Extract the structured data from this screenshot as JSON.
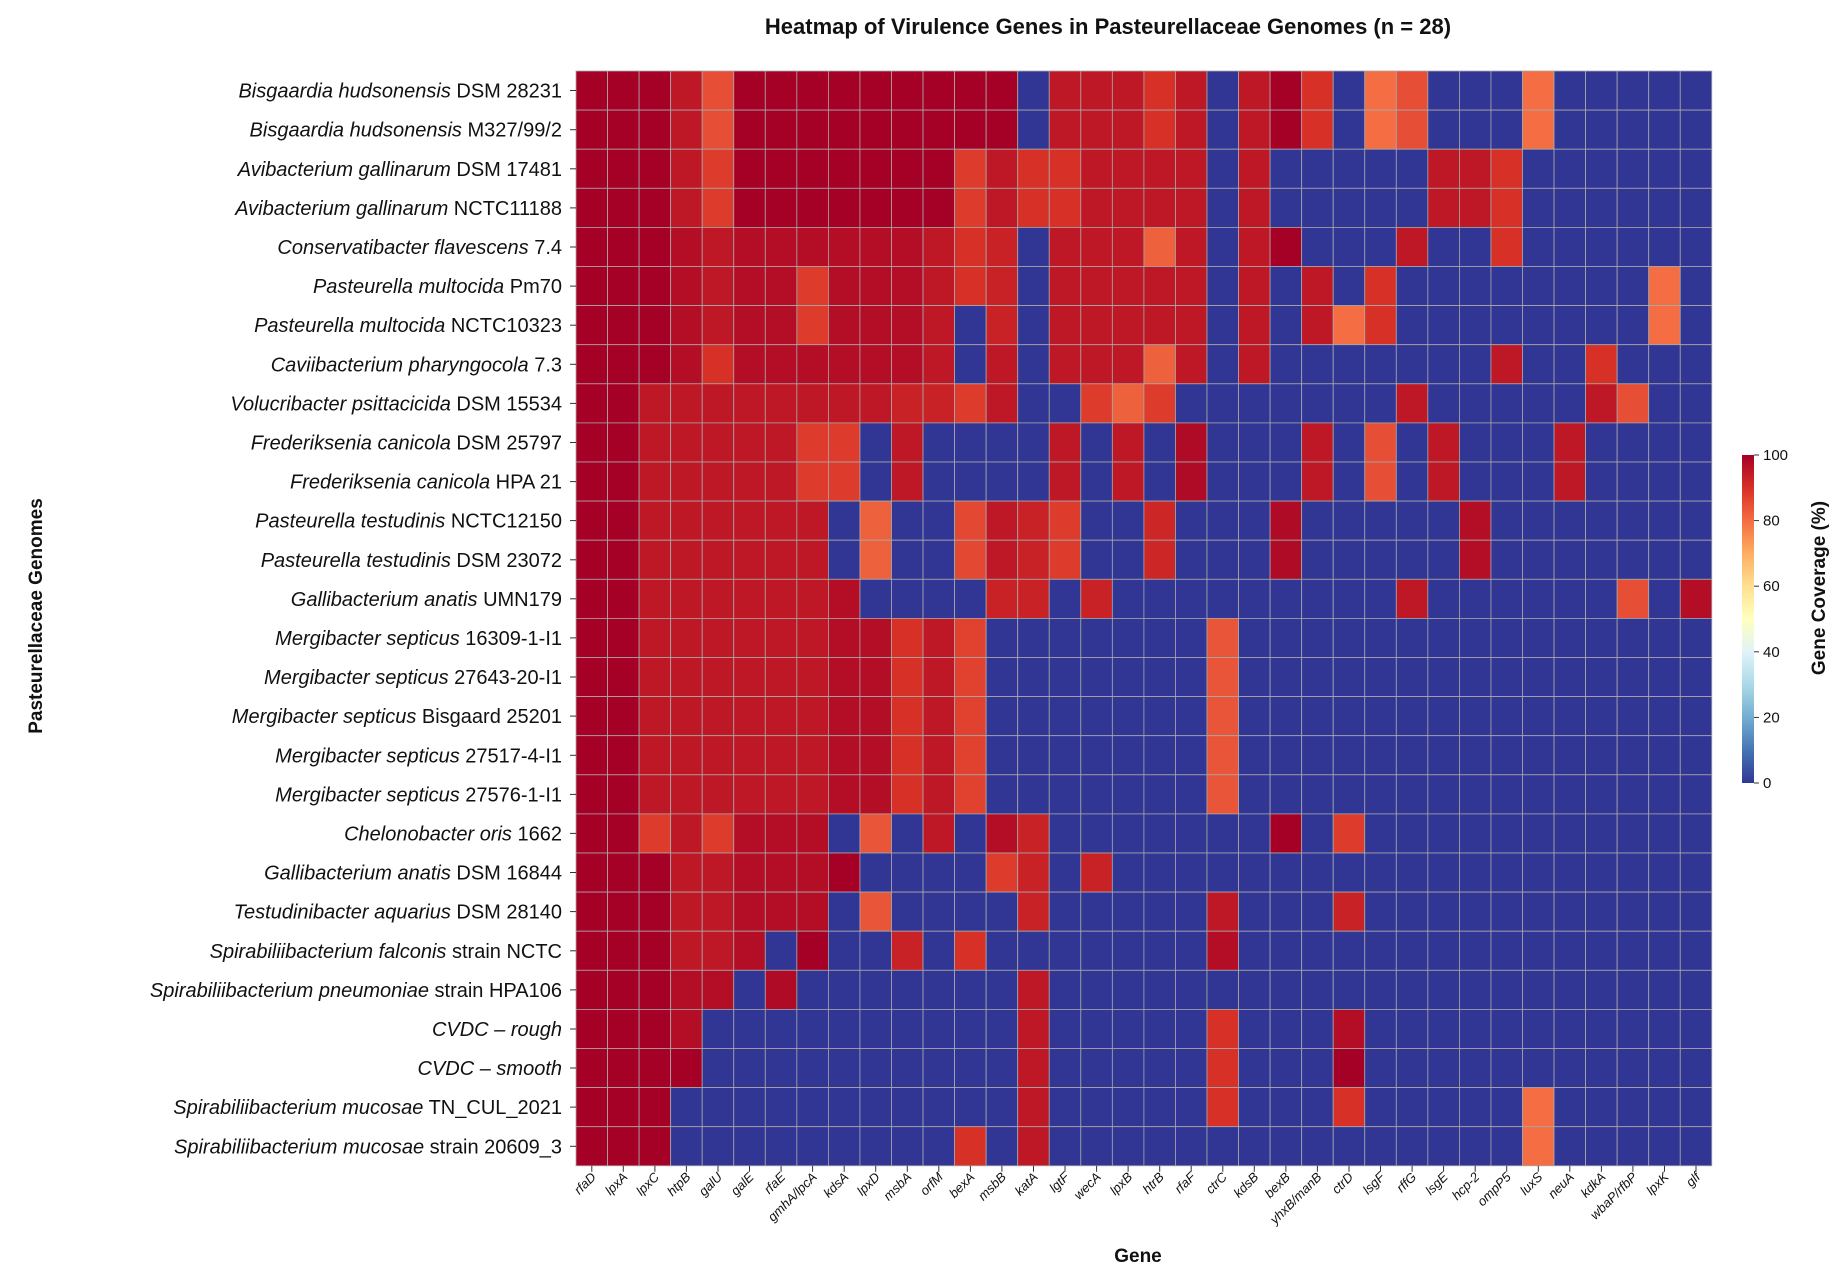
{
  "chart_data": {
    "type": "heatmap",
    "title": "Heatmap of Virulence Genes in Pasteurellaceae Genomes (n = 28)",
    "xlabel": "Gene",
    "ylabel": "Pasteurellaceae Genomes",
    "colorbar": {
      "label": "Gene Coverage (%)",
      "range": [
        0,
        100
      ],
      "ticks": [
        "0",
        "20",
        "40",
        "60",
        "80",
        "100"
      ]
    },
    "colors": {
      "low": "#313695",
      "mid": "#FFFFBF",
      "high": "#A50026",
      "grid": "#A9A9A9"
    },
    "genes": [
      "rfaD",
      "lpxA",
      "lpxC",
      "htpB",
      "galU",
      "galE",
      "rfaE",
      "gmhA/lpcA",
      "kdsA",
      "lpxD",
      "msbA",
      "orfM",
      "bexA",
      "msbB",
      "katA",
      "lgtF",
      "wecA",
      "lpxB",
      "htrB",
      "rfaF",
      "ctrC",
      "kdsB",
      "bexB",
      "yhxB/manB",
      "ctrD",
      "lsgF",
      "rffG",
      "lsgE",
      "hcp-2",
      "ompP5",
      "luxS",
      "neuA",
      "kdkA",
      "wbaP/rfbP",
      "lpxK",
      "glf"
    ],
    "genomes": [
      {
        "species": "Bisgaardia hudsonensis",
        "strain": "DSM 28231"
      },
      {
        "species": "Bisgaardia hudsonensis",
        "strain": "M327/99/2"
      },
      {
        "species": "Avibacterium gallinarum",
        "strain": "DSM 17481"
      },
      {
        "species": "Avibacterium gallinarum",
        "strain": "NCTC11188"
      },
      {
        "species": "Conservatibacter flavescens",
        "strain": "7.4"
      },
      {
        "species": "Pasteurella multocida",
        "strain": "Pm70"
      },
      {
        "species": "Pasteurella multocida",
        "strain": "NCTC10323"
      },
      {
        "species": "Caviibacterium pharyngocola",
        "strain": "7.3"
      },
      {
        "species": "Volucribacter psittacicida",
        "strain": "DSM 15534"
      },
      {
        "species": "Frederiksenia canicola",
        "strain": "DSM 25797"
      },
      {
        "species": "Frederiksenia canicola",
        "strain": "HPA 21"
      },
      {
        "species": "Pasteurella testudinis",
        "strain": "NCTC12150"
      },
      {
        "species": "Pasteurella testudinis",
        "strain": "DSM 23072"
      },
      {
        "species": "Gallibacterium anatis",
        "strain": "UMN179"
      },
      {
        "species": "Mergibacter septicus",
        "strain": "16309-1-I1"
      },
      {
        "species": "Mergibacter septicus",
        "strain": "27643-20-I1"
      },
      {
        "species": "Mergibacter septicus",
        "strain": "Bisgaard 25201"
      },
      {
        "species": "Mergibacter septicus",
        "strain": "27517-4-I1"
      },
      {
        "species": "Mergibacter septicus",
        "strain": "27576-1-I1"
      },
      {
        "species": "Chelonobacter oris",
        "strain": "1662"
      },
      {
        "species": "Gallibacterium anatis",
        "strain": "DSM 16844"
      },
      {
        "species": "Testudinibacter aquarius",
        "strain": "DSM 28140"
      },
      {
        "species": "Spirabiliibacterium falconis",
        "strain": "strain NCTC"
      },
      {
        "species": "Spirabiliibacterium pneumoniae",
        "strain": "strain HPA106"
      },
      {
        "species": "CVDC – rough",
        "strain": ""
      },
      {
        "species": "CVDC – smooth",
        "strain": ""
      },
      {
        "species": "Spirabiliibacterium mucosae",
        "strain": "TN_CUL_2021"
      },
      {
        "species": "Spirabiliibacterium mucosae",
        "strain": "strain 20609_3"
      }
    ],
    "values": [
      [
        100,
        100,
        100,
        95,
        85,
        100,
        100,
        100,
        100,
        100,
        100,
        100,
        100,
        100,
        0,
        95,
        95,
        95,
        90,
        95,
        0,
        95,
        100,
        90,
        0,
        80,
        85,
        0,
        0,
        0,
        80,
        0,
        0,
        0,
        0,
        0
      ],
      [
        100,
        100,
        100,
        95,
        85,
        100,
        100,
        100,
        100,
        100,
        100,
        100,
        100,
        100,
        0,
        95,
        95,
        95,
        90,
        95,
        0,
        95,
        100,
        90,
        0,
        80,
        85,
        0,
        0,
        0,
        80,
        0,
        0,
        0,
        0,
        0
      ],
      [
        100,
        100,
        100,
        95,
        88,
        100,
        100,
        100,
        100,
        100,
        100,
        100,
        88,
        95,
        90,
        90,
        95,
        95,
        95,
        95,
        0,
        95,
        0,
        0,
        0,
        0,
        0,
        95,
        95,
        90,
        0,
        0,
        0,
        0,
        0,
        0
      ],
      [
        100,
        100,
        100,
        95,
        88,
        100,
        100,
        100,
        100,
        100,
        100,
        100,
        88,
        95,
        90,
        90,
        95,
        95,
        95,
        95,
        0,
        95,
        0,
        0,
        0,
        0,
        0,
        95,
        95,
        90,
        0,
        0,
        0,
        0,
        0,
        0
      ],
      [
        100,
        100,
        100,
        97,
        95,
        97,
        97,
        97,
        97,
        97,
        97,
        95,
        90,
        93,
        0,
        95,
        95,
        95,
        82,
        95,
        0,
        95,
        100,
        0,
        0,
        0,
        95,
        0,
        0,
        90,
        0,
        0,
        0,
        0,
        0,
        0
      ],
      [
        100,
        100,
        100,
        97,
        95,
        97,
        97,
        88,
        97,
        97,
        97,
        95,
        90,
        93,
        0,
        95,
        95,
        95,
        95,
        95,
        0,
        95,
        0,
        95,
        0,
        90,
        0,
        0,
        0,
        0,
        0,
        0,
        0,
        0,
        80,
        0
      ],
      [
        100,
        100,
        100,
        97,
        95,
        97,
        97,
        88,
        97,
        97,
        97,
        95,
        0,
        93,
        0,
        95,
        95,
        95,
        95,
        95,
        0,
        95,
        0,
        95,
        80,
        90,
        0,
        0,
        0,
        0,
        0,
        0,
        0,
        0,
        80,
        0
      ],
      [
        100,
        100,
        100,
        97,
        90,
        97,
        97,
        97,
        97,
        97,
        97,
        95,
        0,
        95,
        0,
        95,
        95,
        95,
        82,
        95,
        0,
        95,
        0,
        0,
        0,
        0,
        0,
        0,
        0,
        95,
        0,
        0,
        90,
        0,
        0,
        0
      ],
      [
        100,
        100,
        95,
        95,
        95,
        95,
        95,
        95,
        95,
        95,
        93,
        93,
        88,
        95,
        0,
        0,
        88,
        82,
        88,
        0,
        0,
        0,
        0,
        0,
        0,
        0,
        95,
        0,
        0,
        0,
        0,
        0,
        95,
        85,
        0,
        0
      ],
      [
        100,
        100,
        95,
        95,
        95,
        95,
        95,
        88,
        88,
        0,
        95,
        0,
        0,
        0,
        0,
        95,
        0,
        95,
        0,
        98,
        0,
        0,
        0,
        95,
        0,
        85,
        0,
        95,
        0,
        0,
        0,
        95,
        0,
        0,
        0,
        0
      ],
      [
        100,
        100,
        95,
        95,
        95,
        95,
        95,
        88,
        88,
        0,
        95,
        0,
        0,
        0,
        0,
        95,
        0,
        95,
        0,
        98,
        0,
        0,
        0,
        95,
        0,
        85,
        0,
        95,
        0,
        0,
        0,
        95,
        0,
        0,
        0,
        0
      ],
      [
        100,
        100,
        95,
        95,
        95,
        95,
        95,
        95,
        0,
        82,
        0,
        0,
        86,
        95,
        93,
        88,
        0,
        0,
        92,
        0,
        0,
        0,
        98,
        0,
        0,
        0,
        0,
        0,
        97,
        0,
        0,
        0,
        0,
        0,
        0,
        0
      ],
      [
        100,
        100,
        95,
        95,
        95,
        95,
        95,
        95,
        0,
        82,
        0,
        0,
        86,
        95,
        93,
        88,
        0,
        0,
        92,
        0,
        0,
        0,
        98,
        0,
        0,
        0,
        0,
        0,
        97,
        0,
        0,
        0,
        0,
        0,
        0,
        0
      ],
      [
        100,
        100,
        95,
        95,
        95,
        95,
        95,
        95,
        97,
        0,
        0,
        0,
        0,
        93,
        93,
        0,
        93,
        0,
        0,
        0,
        0,
        0,
        0,
        0,
        0,
        0,
        95,
        0,
        0,
        0,
        0,
        0,
        0,
        85,
        0,
        97
      ],
      [
        100,
        100,
        95,
        95,
        95,
        95,
        95,
        95,
        97,
        97,
        90,
        95,
        87,
        0,
        0,
        0,
        0,
        0,
        0,
        0,
        84,
        0,
        0,
        0,
        0,
        0,
        0,
        0,
        0,
        0,
        0,
        0,
        0,
        0,
        0,
        0
      ],
      [
        100,
        100,
        95,
        95,
        95,
        95,
        95,
        95,
        97,
        97,
        90,
        95,
        87,
        0,
        0,
        0,
        0,
        0,
        0,
        0,
        84,
        0,
        0,
        0,
        0,
        0,
        0,
        0,
        0,
        0,
        0,
        0,
        0,
        0,
        0,
        0
      ],
      [
        100,
        100,
        95,
        95,
        95,
        95,
        95,
        95,
        97,
        97,
        90,
        95,
        87,
        0,
        0,
        0,
        0,
        0,
        0,
        0,
        84,
        0,
        0,
        0,
        0,
        0,
        0,
        0,
        0,
        0,
        0,
        0,
        0,
        0,
        0,
        0
      ],
      [
        100,
        100,
        95,
        95,
        95,
        95,
        95,
        95,
        97,
        97,
        90,
        95,
        87,
        0,
        0,
        0,
        0,
        0,
        0,
        0,
        84,
        0,
        0,
        0,
        0,
        0,
        0,
        0,
        0,
        0,
        0,
        0,
        0,
        0,
        0,
        0
      ],
      [
        100,
        100,
        95,
        95,
        95,
        95,
        95,
        95,
        97,
        97,
        90,
        95,
        87,
        0,
        0,
        0,
        0,
        0,
        0,
        0,
        84,
        0,
        0,
        0,
        0,
        0,
        0,
        0,
        0,
        0,
        0,
        0,
        0,
        0,
        0,
        0
      ],
      [
        100,
        100,
        88,
        95,
        88,
        97,
        97,
        97,
        0,
        84,
        0,
        95,
        0,
        97,
        93,
        0,
        0,
        0,
        0,
        0,
        0,
        0,
        100,
        0,
        88,
        0,
        0,
        0,
        0,
        0,
        0,
        0,
        0,
        0,
        0,
        0
      ],
      [
        100,
        100,
        100,
        95,
        95,
        97,
        97,
        97,
        100,
        0,
        0,
        0,
        0,
        88,
        93,
        0,
        93,
        0,
        0,
        0,
        0,
        0,
        0,
        0,
        0,
        0,
        0,
        0,
        0,
        0,
        0,
        0,
        0,
        0,
        0,
        0
      ],
      [
        100,
        100,
        100,
        95,
        95,
        97,
        97,
        97,
        0,
        84,
        0,
        0,
        0,
        0,
        93,
        0,
        0,
        0,
        0,
        0,
        95,
        0,
        0,
        0,
        93,
        0,
        0,
        0,
        0,
        0,
        0,
        0,
        0,
        0,
        0,
        0
      ],
      [
        100,
        100,
        100,
        95,
        95,
        97,
        0,
        100,
        0,
        0,
        93,
        0,
        90,
        0,
        0,
        0,
        0,
        0,
        0,
        0,
        97,
        0,
        0,
        0,
        0,
        0,
        0,
        0,
        0,
        0,
        0,
        0,
        0,
        0,
        0,
        0
      ],
      [
        100,
        100,
        100,
        97,
        97,
        0,
        98,
        0,
        0,
        0,
        0,
        0,
        0,
        0,
        95,
        0,
        0,
        0,
        0,
        0,
        0,
        0,
        0,
        0,
        0,
        0,
        0,
        0,
        0,
        0,
        0,
        0,
        0,
        0,
        0,
        0
      ],
      [
        100,
        100,
        100,
        97,
        0,
        0,
        0,
        0,
        0,
        0,
        0,
        0,
        0,
        0,
        95,
        0,
        0,
        0,
        0,
        0,
        90,
        0,
        0,
        0,
        97,
        0,
        0,
        0,
        0,
        0,
        0,
        0,
        0,
        0,
        0,
        0
      ],
      [
        100,
        100,
        100,
        100,
        0,
        0,
        0,
        0,
        0,
        0,
        0,
        0,
        0,
        0,
        95,
        0,
        0,
        0,
        0,
        0,
        90,
        0,
        0,
        0,
        100,
        0,
        0,
        0,
        0,
        0,
        0,
        0,
        0,
        0,
        0,
        0
      ],
      [
        100,
        100,
        100,
        0,
        0,
        0,
        0,
        0,
        0,
        0,
        0,
        0,
        0,
        0,
        95,
        0,
        0,
        0,
        0,
        0,
        90,
        0,
        0,
        0,
        90,
        0,
        0,
        0,
        0,
        0,
        80,
        0,
        0,
        0,
        0,
        0
      ],
      [
        100,
        100,
        100,
        0,
        0,
        0,
        0,
        0,
        0,
        0,
        0,
        0,
        90,
        0,
        95,
        0,
        0,
        0,
        0,
        0,
        0,
        0,
        0,
        0,
        0,
        0,
        0,
        0,
        0,
        0,
        80,
        0,
        0,
        0,
        0,
        0
      ]
    ],
    "grid": true,
    "legend": "right"
  }
}
